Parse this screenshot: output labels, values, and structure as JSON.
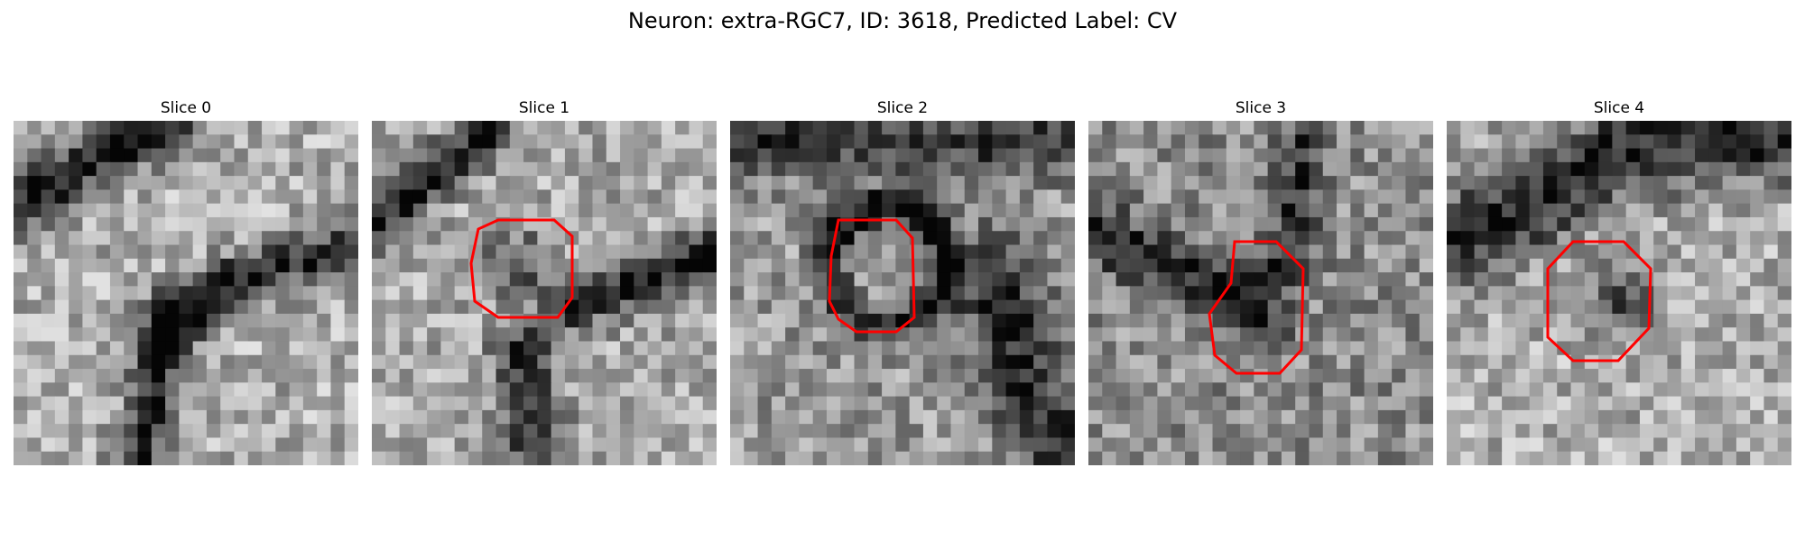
{
  "figure": {
    "title": "Neuron: extra-RGC7, ID: 3618, Predicted Label: CV",
    "outline_color": "#ff0000",
    "colormap": "gray"
  },
  "panels": [
    {
      "title": "Slice 0",
      "roi_outline": false
    },
    {
      "title": "Slice 1",
      "roi_outline": true
    },
    {
      "title": "Slice 2",
      "roi_outline": true
    },
    {
      "title": "Slice 3",
      "roi_outline": true
    },
    {
      "title": "Slice 4",
      "roi_outline": true
    }
  ]
}
